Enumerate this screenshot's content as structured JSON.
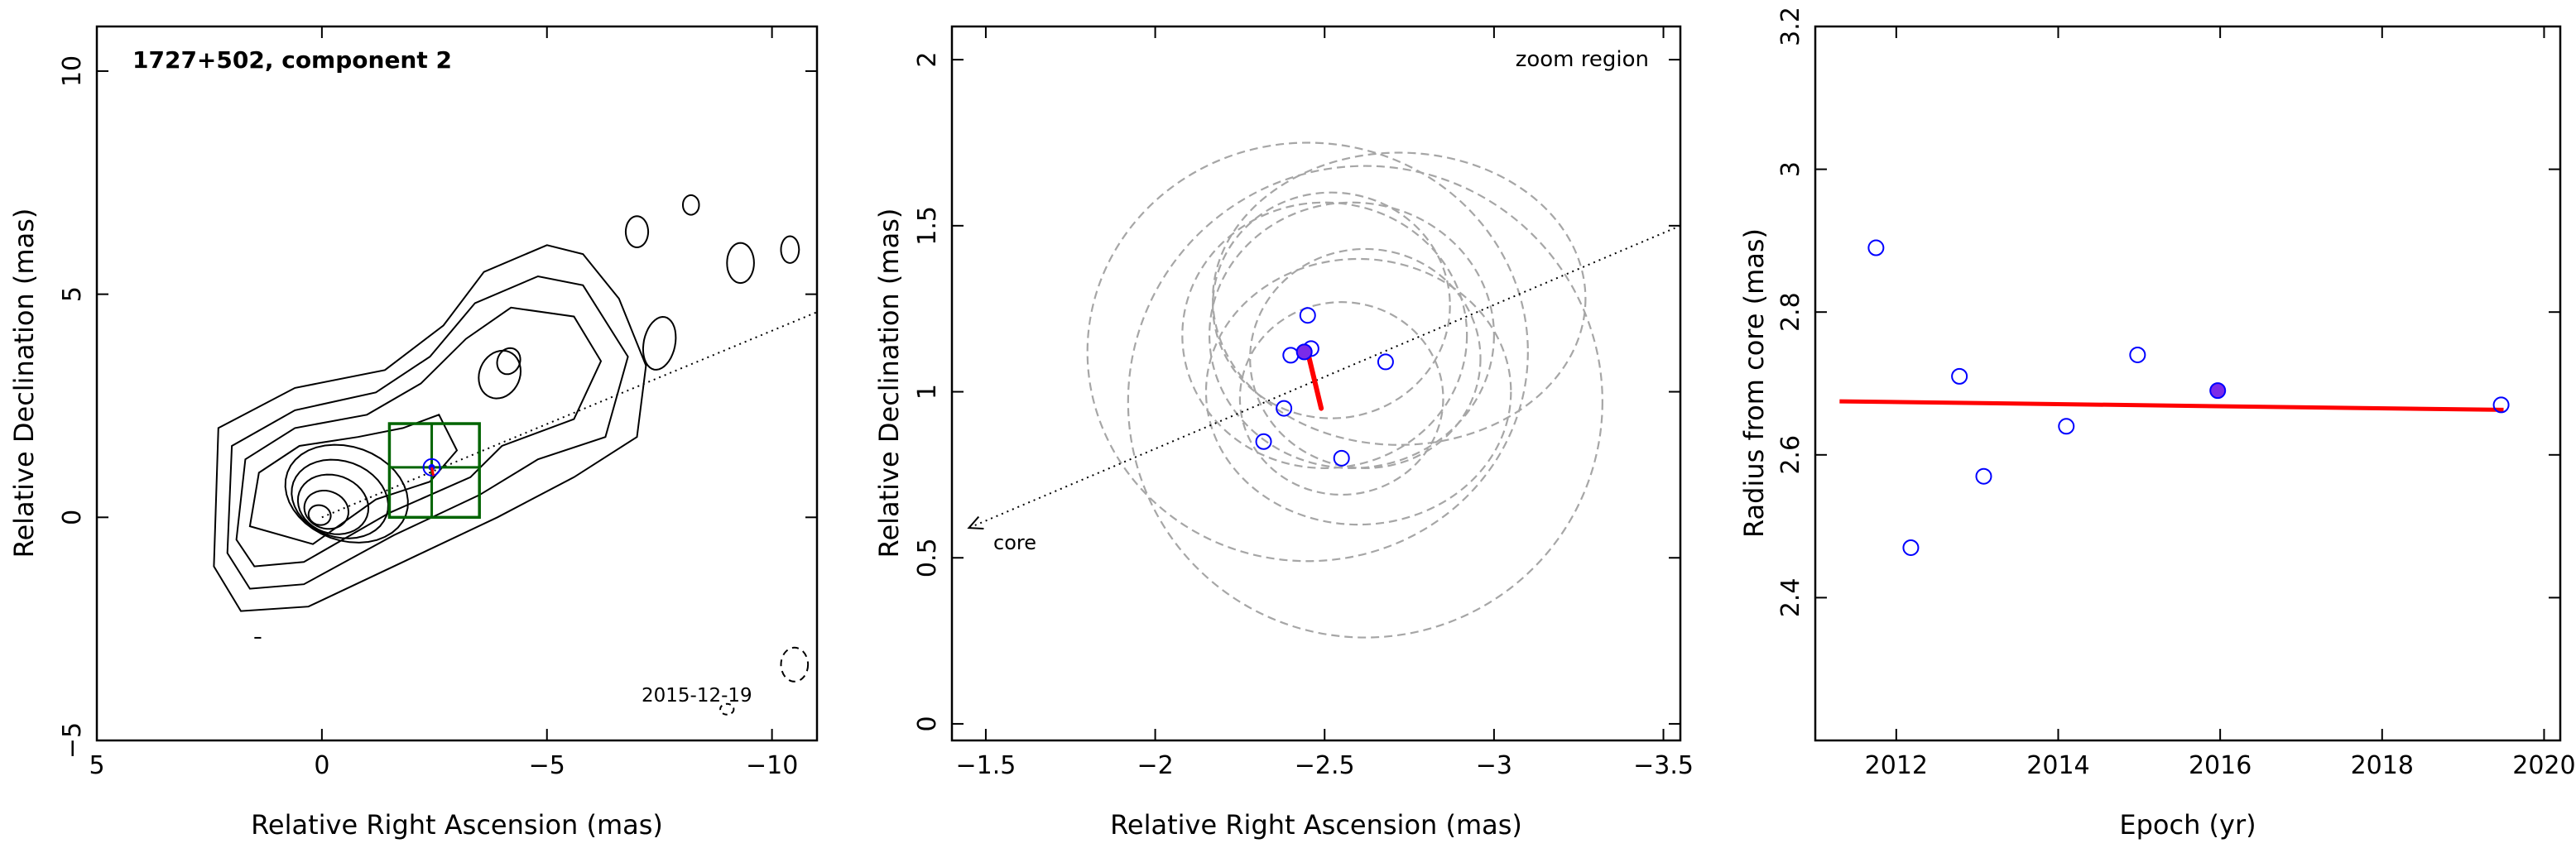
{
  "chart_data": [
    {
      "type": "contour",
      "title": "1727+502, component 2",
      "annotation": "2015-12-19",
      "xlabel": "Relative Right Ascension (mas)",
      "ylabel": "Relative Declination (mas)",
      "xlim": [
        5,
        -11
      ],
      "ylim": [
        -5,
        11
      ],
      "xticks": [
        {
          "v": 5,
          "t": "5"
        },
        {
          "v": 0,
          "t": "0"
        },
        {
          "v": -5,
          "t": "−5"
        },
        {
          "v": -10,
          "t": "−10"
        }
      ],
      "yticks": [
        {
          "v": -5,
          "t": "−5"
        },
        {
          "v": 0,
          "t": "0"
        },
        {
          "v": 5,
          "t": "5"
        },
        {
          "v": 10,
          "t": "10"
        }
      ],
      "jet_axis": {
        "from": [
          0,
          0
        ],
        "to": [
          -11,
          4.6
        ]
      },
      "zoom_box": {
        "x": [
          -1.5,
          -3.5
        ],
        "y": [
          0,
          2.1
        ]
      },
      "component": {
        "x": -2.44,
        "y": 1.12
      },
      "contour_color": "#000000",
      "box_color": "#006400",
      "component_color": "#0000ff"
    },
    {
      "type": "scatter",
      "label_zoom": "zoom region",
      "label_core": "core",
      "xlabel": "Relative Right Ascension (mas)",
      "ylabel": "Relative Declination (mas)",
      "xlim": [
        -1.4,
        -3.55
      ],
      "ylim": [
        -0.05,
        2.1
      ],
      "xticks": [
        {
          "v": -1.5,
          "t": "−1.5"
        },
        {
          "v": -2,
          "t": "−2"
        },
        {
          "v": -2.5,
          "t": "−2.5"
        },
        {
          "v": -3,
          "t": "−3"
        },
        {
          "v": -3.5,
          "t": "−3.5"
        }
      ],
      "yticks": [
        {
          "v": 0,
          "t": "0"
        },
        {
          "v": 0.5,
          "t": "0.5"
        },
        {
          "v": 1,
          "t": "1"
        },
        {
          "v": 1.5,
          "t": "1.5"
        },
        {
          "v": 2,
          "t": "2"
        }
      ],
      "points": [
        {
          "x": -2.45,
          "y": 1.23
        },
        {
          "x": -2.4,
          "y": 1.11
        },
        {
          "x": -2.46,
          "y": 1.13
        },
        {
          "x": -2.68,
          "y": 1.09
        },
        {
          "x": -2.38,
          "y": 0.95
        },
        {
          "x": -2.32,
          "y": 0.85
        },
        {
          "x": -2.55,
          "y": 0.8
        }
      ],
      "highlight": {
        "x": -2.44,
        "y": 1.12
      },
      "ellipses": [
        {
          "cx": -2.45,
          "cy": 1.12,
          "rx": 0.65,
          "ry": 0.63
        },
        {
          "cx": -2.62,
          "cy": 0.97,
          "rx": 0.7,
          "ry": 0.71
        },
        {
          "cx": -2.6,
          "cy": 1.0,
          "rx": 0.45,
          "ry": 0.4
        },
        {
          "cx": -2.58,
          "cy": 1.17,
          "rx": 0.42,
          "ry": 0.4
        },
        {
          "cx": -2.5,
          "cy": 1.17,
          "rx": 0.42,
          "ry": 0.4
        },
        {
          "cx": -2.52,
          "cy": 1.26,
          "rx": 0.35,
          "ry": 0.34
        },
        {
          "cx": -2.55,
          "cy": 0.98,
          "rx": 0.3,
          "ry": 0.29
        },
        {
          "cx": -2.62,
          "cy": 1.1,
          "rx": 0.34,
          "ry": 0.33
        },
        {
          "cx": -2.72,
          "cy": 1.28,
          "rx": 0.55,
          "ry": 0.44
        }
      ],
      "motion_vector": {
        "from": [
          -2.45,
          1.12
        ],
        "to": [
          -2.49,
          0.95
        ]
      },
      "jet_axis": {
        "from": [
          -3.55,
          1.5
        ],
        "to": [
          -1.45,
          0.59
        ]
      },
      "point_color": "#0000ff",
      "ellipse_color": "#a6a6a6",
      "vector_color": "#ff0000"
    },
    {
      "type": "scatter",
      "xlabel": "Epoch (yr)",
      "ylabel": "Radius from core (mas)",
      "xlim": [
        2011,
        2020.2
      ],
      "ylim": [
        2.2,
        3.2
      ],
      "xticks": [
        {
          "v": 2012,
          "t": "2012"
        },
        {
          "v": 2014,
          "t": "2014"
        },
        {
          "v": 2016,
          "t": "2016"
        },
        {
          "v": 2018,
          "t": "2018"
        },
        {
          "v": 2020,
          "t": "2020"
        }
      ],
      "yticks": [
        {
          "v": 2.4,
          "t": "2.4"
        },
        {
          "v": 2.6,
          "t": "2.6"
        },
        {
          "v": 2.8,
          "t": "2.8"
        },
        {
          "v": 3,
          "t": "3"
        },
        {
          "v": 3.2,
          "t": "3.2"
        }
      ],
      "points": [
        {
          "x": 2011.75,
          "y": 2.89
        },
        {
          "x": 2012.18,
          "y": 2.47
        },
        {
          "x": 2012.78,
          "y": 2.71
        },
        {
          "x": 2013.08,
          "y": 2.57
        },
        {
          "x": 2014.1,
          "y": 2.64
        },
        {
          "x": 2014.98,
          "y": 2.74
        },
        {
          "x": 2019.47,
          "y": 2.67
        }
      ],
      "highlight": {
        "x": 2015.97,
        "y": 2.69
      },
      "fit_line": {
        "from": [
          2011.3,
          2.675
        ],
        "to": [
          2019.5,
          2.663
        ]
      },
      "point_color": "#0000ff",
      "fit_color": "#ff0000"
    }
  ]
}
